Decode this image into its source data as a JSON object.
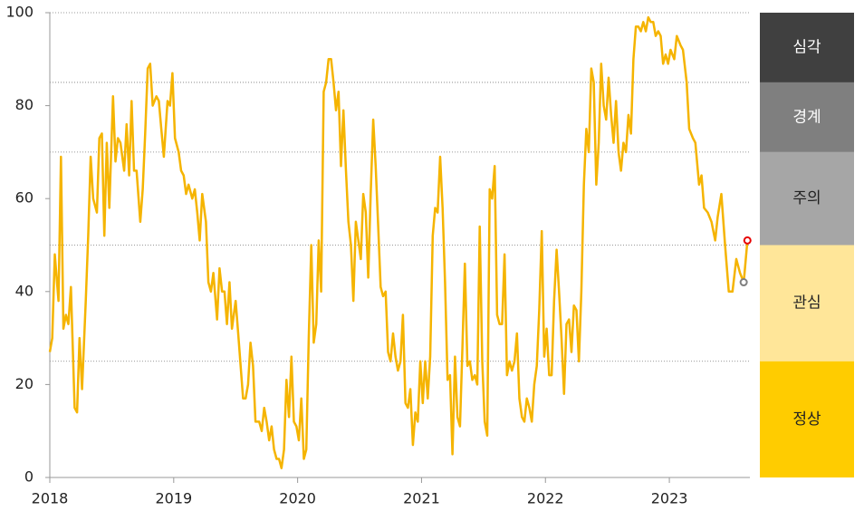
{
  "chart_data": {
    "type": "line",
    "x": [
      2018,
      2018.02,
      2018.04,
      2018.07,
      2018.09,
      2018.11,
      2018.13,
      2018.15,
      2018.17,
      2018.2,
      2018.22,
      2018.24,
      2018.26,
      2018.29,
      2018.31,
      2018.33,
      2018.35,
      2018.38,
      2018.4,
      2018.42,
      2018.44,
      2018.46,
      2018.48,
      2018.51,
      2018.53,
      2018.55,
      2018.57,
      2018.6,
      2018.62,
      2018.64,
      2018.66,
      2018.68,
      2018.7,
      2018.73,
      2018.75,
      2018.77,
      2018.79,
      2018.81,
      2018.83,
      2018.86,
      2018.88,
      2018.9,
      2018.92,
      2018.95,
      2018.97,
      2018.99,
      2019.01,
      2019.04,
      2019.06,
      2019.08,
      2019.1,
      2019.12,
      2019.15,
      2019.17,
      2019.19,
      2019.21,
      2019.23,
      2019.26,
      2019.28,
      2019.3,
      2019.32,
      2019.35,
      2019.37,
      2019.39,
      2019.41,
      2019.43,
      2019.45,
      2019.47,
      2019.5,
      2019.52,
      2019.54,
      2019.56,
      2019.58,
      2019.6,
      2019.62,
      2019.64,
      2019.66,
      2019.69,
      2019.71,
      2019.73,
      2019.75,
      2019.77,
      2019.79,
      2019.81,
      2019.83,
      2019.85,
      2019.87,
      2019.89,
      2019.91,
      2019.93,
      2019.95,
      2019.97,
      2019.99,
      2020.01,
      2020.03,
      2020.05,
      2020.07,
      2020.09,
      2020.11,
      2020.13,
      2020.15,
      2020.17,
      2020.19,
      2020.21,
      2020.23,
      2020.25,
      2020.27,
      2020.29,
      2020.31,
      2020.33,
      2020.35,
      2020.37,
      2020.39,
      2020.41,
      2020.43,
      2020.45,
      2020.47,
      2020.49,
      2020.51,
      2020.53,
      2020.55,
      2020.57,
      2020.59,
      2020.61,
      2020.63,
      2020.65,
      2020.67,
      2020.69,
      2020.71,
      2020.73,
      2020.75,
      2020.77,
      2020.79,
      2020.81,
      2020.83,
      2020.85,
      2020.87,
      2020.89,
      2020.91,
      2020.93,
      2020.95,
      2020.97,
      2020.99,
      2021.01,
      2021.03,
      2021.05,
      2021.07,
      2021.09,
      2021.11,
      2021.13,
      2021.15,
      2021.17,
      2021.19,
      2021.21,
      2021.23,
      2021.25,
      2021.27,
      2021.29,
      2021.31,
      2021.33,
      2021.35,
      2021.37,
      2021.39,
      2021.41,
      2021.43,
      2021.45,
      2021.47,
      2021.49,
      2021.51,
      2021.53,
      2021.55,
      2021.57,
      2021.59,
      2021.61,
      2021.63,
      2021.65,
      2021.67,
      2021.69,
      2021.71,
      2021.73,
      2021.75,
      2021.77,
      2021.79,
      2021.81,
      2021.83,
      2021.85,
      2021.87,
      2021.89,
      2021.91,
      2021.93,
      2021.95,
      2021.97,
      2021.99,
      2022.01,
      2022.03,
      2022.05,
      2022.07,
      2022.09,
      2022.11,
      2022.13,
      2022.15,
      2022.17,
      2022.19,
      2022.21,
      2022.23,
      2022.25,
      2022.27,
      2022.29,
      2022.31,
      2022.33,
      2022.35,
      2022.37,
      2022.39,
      2022.41,
      2022.43,
      2022.45,
      2022.47,
      2022.49,
      2022.51,
      2022.53,
      2022.55,
      2022.57,
      2022.59,
      2022.61,
      2022.63,
      2022.65,
      2022.67,
      2022.69,
      2022.71,
      2022.73,
      2022.75,
      2022.77,
      2022.79,
      2022.81,
      2022.83,
      2022.85,
      2022.87,
      2022.89,
      2022.91,
      2022.93,
      2022.95,
      2022.97,
      2022.99,
      2023.01,
      2023.04,
      2023.06,
      2023.09,
      2023.11,
      2023.14,
      2023.16,
      2023.19,
      2023.21,
      2023.24,
      2023.26,
      2023.28,
      2023.31,
      2023.34,
      2023.37,
      2023.39,
      2023.42,
      2023.45,
      2023.48,
      2023.51,
      2023.54,
      2023.57,
      2023.6,
      2023.63
    ],
    "values": [
      27,
      30,
      48,
      38,
      69,
      32,
      35,
      33,
      41,
      15,
      14,
      30,
      19,
      38,
      52,
      69,
      60,
      57,
      73,
      74,
      52,
      72,
      58,
      82,
      68,
      73,
      72,
      66,
      76,
      65,
      81,
      66,
      66,
      55,
      62,
      74,
      88,
      89,
      80,
      82,
      81,
      75,
      69,
      81,
      80,
      87,
      73,
      70,
      66,
      65,
      61,
      63,
      60,
      62,
      57,
      51,
      61,
      55,
      42,
      40,
      44,
      34,
      45,
      40,
      40,
      33,
      42,
      32,
      38,
      31,
      24,
      17,
      17,
      20,
      29,
      24,
      12,
      12,
      10,
      15,
      12,
      8,
      11,
      6,
      4,
      4,
      2,
      6,
      21,
      13,
      26,
      12,
      11,
      8,
      17,
      4,
      6,
      30,
      50,
      29,
      33,
      51,
      40,
      83,
      85,
      90,
      90,
      85,
      79,
      83,
      67,
      79,
      66,
      55,
      50,
      38,
      55,
      51,
      47,
      61,
      57,
      43,
      61,
      77,
      67,
      54,
      41,
      39,
      40,
      27,
      25,
      31,
      26,
      23,
      25,
      35,
      16,
      15,
      19,
      7,
      14,
      12,
      25,
      16,
      25,
      17,
      26,
      52,
      58,
      57,
      69,
      58,
      42,
      21,
      22,
      5,
      26,
      13,
      11,
      28,
      46,
      24,
      25,
      21,
      22,
      20,
      54,
      25,
      12,
      9,
      62,
      60,
      67,
      35,
      33,
      33,
      48,
      22,
      25,
      23,
      25,
      31,
      17,
      13,
      12,
      17,
      15,
      12,
      20,
      24,
      36,
      53,
      26,
      32,
      22,
      22,
      38,
      49,
      40,
      30,
      18,
      33,
      34,
      27,
      37,
      36,
      25,
      40,
      63,
      75,
      70,
      88,
      85,
      63,
      72,
      89,
      80,
      77,
      86,
      78,
      72,
      81,
      70,
      66,
      72,
      70,
      78,
      74,
      90,
      97,
      97,
      96,
      98,
      96,
      99,
      98,
      98,
      95,
      96,
      95,
      89,
      91,
      89,
      92,
      90,
      95,
      93,
      92,
      85,
      75,
      73,
      72,
      63,
      65,
      58,
      57,
      55,
      51,
      56,
      61,
      50,
      40,
      40,
      47,
      44,
      42,
      51
    ],
    "color": "#f5b400",
    "highlights": [
      {
        "x": 2023.6,
        "value": 42,
        "color": "#808080"
      },
      {
        "x": 2023.63,
        "value": 51,
        "color": "#e60000"
      }
    ],
    "xlim": [
      2018,
      2023.65
    ],
    "xticks": [
      2018,
      2019,
      2020,
      2021,
      2022,
      2023
    ],
    "ylim": [
      0,
      100
    ],
    "yticks": [
      0,
      20,
      40,
      60,
      80,
      100
    ],
    "gridlines": [
      25,
      50,
      70,
      85,
      100
    ],
    "zones": [
      {
        "label": "심각",
        "from": 85,
        "to": 100,
        "color": "#404040",
        "text_color": "#ffffff"
      },
      {
        "label": "경계",
        "from": 70,
        "to": 85,
        "color": "#7f7f7f",
        "text_color": "#ffffff"
      },
      {
        "label": "주의",
        "from": 50,
        "to": 70,
        "color": "#a6a6a6",
        "text_color": "#222222"
      },
      {
        "label": "관심",
        "from": 25,
        "to": 50,
        "color": "#ffe699",
        "text_color": "#222222"
      },
      {
        "label": "정상",
        "from": 0,
        "to": 25,
        "color": "#ffcc00",
        "text_color": "#222222"
      }
    ]
  }
}
